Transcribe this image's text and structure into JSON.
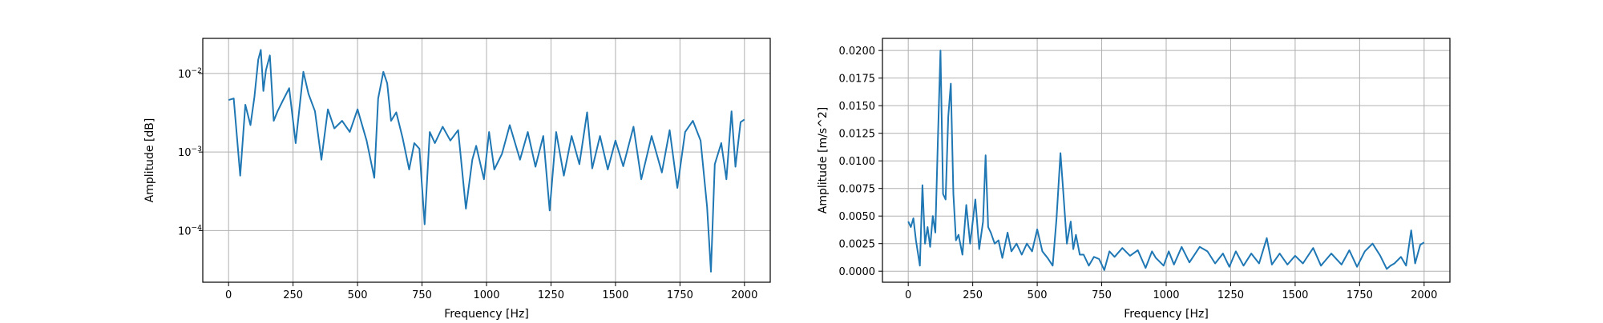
{
  "chart_data": [
    {
      "type": "line",
      "title": "",
      "xlabel": "Frequency [Hz]",
      "ylabel": "Amplitude [dB]",
      "yscale": "log",
      "xlim": [
        -100,
        2100
      ],
      "ylim": [
        2.2e-05,
        0.028
      ],
      "grid": true,
      "x_ticks": [
        0,
        250,
        500,
        750,
        1000,
        1250,
        1500,
        1750,
        2000
      ],
      "x_tick_labels": [
        "0",
        "250",
        "500",
        "750",
        "1000",
        "1250",
        "1500",
        "1750",
        "2000"
      ],
      "y_ticks": [
        0.0001,
        0.001,
        0.01
      ],
      "y_tick_labels": [
        "10",
        "10",
        "10"
      ],
      "y_tick_exponents": [
        "−4",
        "−3",
        "−2"
      ],
      "color": "#1f77b4",
      "series": [
        {
          "x": [
            0,
            20,
            45,
            65,
            85,
            100,
            115,
            125,
            135,
            145,
            160,
            175,
            190,
            210,
            235,
            260,
            290,
            310,
            335,
            360,
            385,
            410,
            440,
            470,
            500,
            535,
            565,
            580,
            600,
            615,
            630,
            650,
            675,
            700,
            720,
            740,
            760,
            780,
            800,
            830,
            860,
            890,
            920,
            945,
            960,
            990,
            1010,
            1030,
            1060,
            1090,
            1130,
            1160,
            1190,
            1220,
            1245,
            1270,
            1300,
            1330,
            1360,
            1390,
            1410,
            1440,
            1470,
            1500,
            1530,
            1570,
            1600,
            1640,
            1680,
            1710,
            1740,
            1770,
            1800,
            1830,
            1855,
            1870,
            1885,
            1910,
            1930,
            1950,
            1965,
            1985,
            2000
          ],
          "y": [
            0.0046,
            0.0048,
            0.0005,
            0.004,
            0.0022,
            0.005,
            0.015,
            0.02,
            0.006,
            0.011,
            0.017,
            0.0025,
            0.0033,
            0.0045,
            0.0065,
            0.0013,
            0.0105,
            0.0055,
            0.0033,
            0.0008,
            0.0035,
            0.002,
            0.0025,
            0.0018,
            0.0035,
            0.0014,
            0.00047,
            0.0048,
            0.0105,
            0.0075,
            0.0025,
            0.0032,
            0.0015,
            0.0006,
            0.0013,
            0.0011,
            0.00012,
            0.0018,
            0.0013,
            0.0021,
            0.0014,
            0.0019,
            0.00019,
            0.0008,
            0.0012,
            0.00045,
            0.0018,
            0.0006,
            0.00095,
            0.0022,
            0.0008,
            0.0018,
            0.00065,
            0.0016,
            0.00018,
            0.0018,
            0.0005,
            0.0016,
            0.0007,
            0.0032,
            0.00062,
            0.0016,
            0.0006,
            0.0014,
            0.00066,
            0.0021,
            0.00045,
            0.0016,
            0.00055,
            0.0019,
            0.00035,
            0.0018,
            0.0025,
            0.0014,
            0.0002,
            3e-05,
            0.0007,
            0.0013,
            0.00045,
            0.0033,
            0.00065,
            0.0024,
            0.0026
          ]
        }
      ]
    },
    {
      "type": "line",
      "title": "",
      "xlabel": "Frequency [Hz]",
      "ylabel": "Amplitude [m/s^2]",
      "yscale": "linear",
      "xlim": [
        -100,
        2100
      ],
      "ylim": [
        -0.001,
        0.0211
      ],
      "grid": true,
      "x_ticks": [
        0,
        250,
        500,
        750,
        1000,
        1250,
        1500,
        1750,
        2000
      ],
      "x_tick_labels": [
        "0",
        "250",
        "500",
        "750",
        "1000",
        "1250",
        "1500",
        "1750",
        "2000"
      ],
      "y_ticks": [
        0,
        0.0025,
        0.005,
        0.0075,
        0.01,
        0.0125,
        0.015,
        0.0175,
        0.02
      ],
      "y_tick_labels": [
        "0.0000",
        "0.0025",
        "0.0050",
        "0.0075",
        "0.0100",
        "0.0125",
        "0.0150",
        "0.0175",
        "0.0200"
      ],
      "color": "#1f77b4",
      "series": [
        {
          "x": [
            0,
            10,
            20,
            30,
            45,
            55,
            65,
            75,
            85,
            95,
            105,
            115,
            125,
            135,
            145,
            155,
            165,
            175,
            185,
            195,
            210,
            225,
            240,
            260,
            275,
            290,
            300,
            310,
            320,
            335,
            350,
            365,
            385,
            400,
            420,
            440,
            460,
            480,
            500,
            520,
            540,
            560,
            575,
            590,
            600,
            615,
            630,
            640,
            650,
            665,
            680,
            700,
            720,
            740,
            760,
            780,
            800,
            830,
            860,
            890,
            920,
            945,
            960,
            990,
            1010,
            1030,
            1060,
            1090,
            1130,
            1160,
            1190,
            1220,
            1245,
            1270,
            1300,
            1330,
            1360,
            1390,
            1410,
            1440,
            1470,
            1500,
            1530,
            1570,
            1600,
            1640,
            1680,
            1710,
            1740,
            1770,
            1800,
            1830,
            1855,
            1870,
            1885,
            1910,
            1930,
            1950,
            1965,
            1985,
            2000
          ],
          "y": [
            0.0045,
            0.004,
            0.0048,
            0.0028,
            0.0005,
            0.0078,
            0.0025,
            0.004,
            0.0022,
            0.005,
            0.0035,
            0.012,
            0.02,
            0.007,
            0.0065,
            0.014,
            0.017,
            0.007,
            0.0028,
            0.0033,
            0.0015,
            0.006,
            0.0025,
            0.0065,
            0.002,
            0.0045,
            0.0105,
            0.004,
            0.0035,
            0.0025,
            0.0028,
            0.0012,
            0.0035,
            0.0018,
            0.0025,
            0.0015,
            0.0025,
            0.0018,
            0.0038,
            0.0018,
            0.0012,
            0.0005,
            0.0048,
            0.0107,
            0.0075,
            0.0025,
            0.0045,
            0.002,
            0.0033,
            0.0015,
            0.0015,
            0.0005,
            0.0013,
            0.0011,
            0.0001,
            0.0018,
            0.0013,
            0.0021,
            0.0014,
            0.0019,
            0.0003,
            0.0018,
            0.0012,
            0.0005,
            0.0018,
            0.0006,
            0.0022,
            0.0008,
            0.0022,
            0.0018,
            0.0007,
            0.0016,
            0.0004,
            0.0018,
            0.0005,
            0.0016,
            0.0007,
            0.003,
            0.0006,
            0.0016,
            0.0006,
            0.0014,
            0.0007,
            0.0021,
            0.0005,
            0.0016,
            0.0006,
            0.0019,
            0.0004,
            0.0018,
            0.0025,
            0.0014,
            0.0002,
            0.0005,
            0.0007,
            0.0013,
            0.0005,
            0.0037,
            0.0007,
            0.0024,
            0.0026
          ]
        }
      ]
    }
  ]
}
